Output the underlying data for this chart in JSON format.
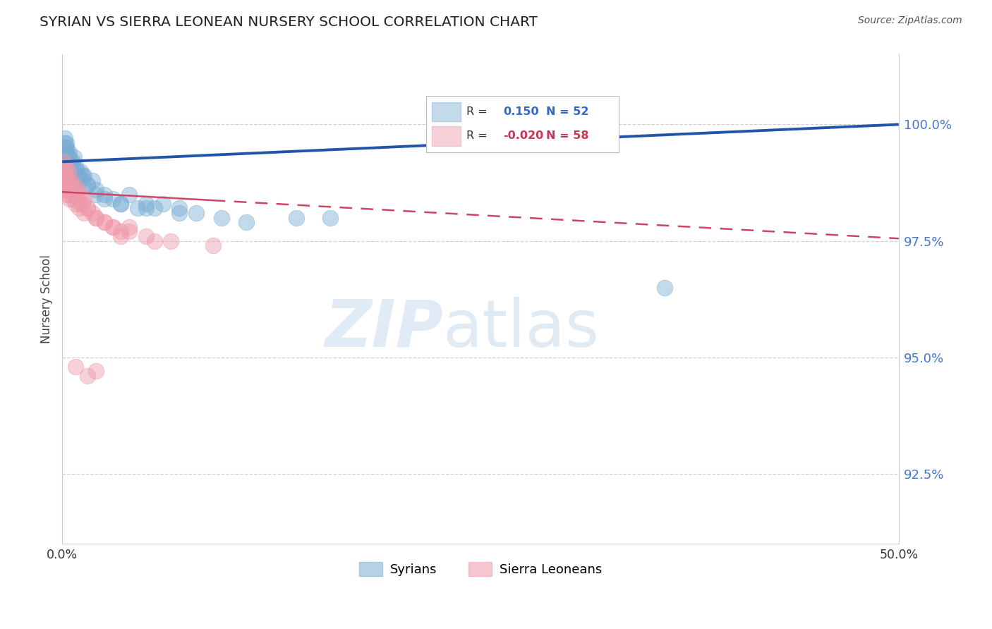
{
  "title": "SYRIAN VS SIERRA LEONEAN NURSERY SCHOOL CORRELATION CHART",
  "source": "Source: ZipAtlas.com",
  "ylabel": "Nursery School",
  "xmin": 0.0,
  "xmax": 50.0,
  "ymin": 91.0,
  "ymax": 101.5,
  "yticks": [
    92.5,
    95.0,
    97.5,
    100.0
  ],
  "ytick_labels": [
    "92.5%",
    "95.0%",
    "97.5%",
    "100.0%"
  ],
  "blue_color": "#7aadd4",
  "pink_color": "#ee99aa",
  "blue_line_color": "#2255aa",
  "pink_line_color": "#cc4466",
  "r_blue": 0.15,
  "n_blue": 52,
  "r_pink": -0.02,
  "n_pink": 58,
  "syrians_x": [
    0.05,
    0.1,
    0.15,
    0.2,
    0.25,
    0.3,
    0.35,
    0.4,
    0.5,
    0.6,
    0.7,
    0.8,
    0.9,
    1.0,
    1.1,
    1.2,
    1.3,
    1.5,
    1.8,
    2.0,
    2.5,
    3.0,
    3.5,
    4.0,
    4.5,
    5.0,
    5.5,
    6.0,
    7.0,
    8.0,
    9.5,
    11.0,
    14.0,
    16.0,
    36.0,
    0.15,
    0.2,
    0.25,
    0.3,
    0.4,
    0.5,
    0.6,
    0.7,
    0.8,
    1.0,
    1.2,
    1.5,
    2.0,
    2.5,
    3.5,
    5.0,
    7.0
  ],
  "syrians_y": [
    99.5,
    99.3,
    99.6,
    99.4,
    99.5,
    99.2,
    99.3,
    99.4,
    99.1,
    99.2,
    99.0,
    99.1,
    99.0,
    98.9,
    99.0,
    98.8,
    98.9,
    98.7,
    98.8,
    98.6,
    98.5,
    98.4,
    98.3,
    98.5,
    98.2,
    98.3,
    98.2,
    98.3,
    98.2,
    98.1,
    98.0,
    97.9,
    98.0,
    98.0,
    96.5,
    99.7,
    99.5,
    99.6,
    99.4,
    99.3,
    99.2,
    99.1,
    99.3,
    99.0,
    98.8,
    98.9,
    98.7,
    98.5,
    98.4,
    98.3,
    98.2,
    98.1
  ],
  "sierra_x": [
    0.05,
    0.1,
    0.15,
    0.2,
    0.25,
    0.3,
    0.35,
    0.4,
    0.5,
    0.6,
    0.7,
    0.8,
    0.9,
    1.0,
    1.1,
    1.2,
    1.3,
    1.5,
    1.8,
    2.0,
    2.5,
    3.0,
    3.5,
    4.0,
    5.0,
    6.5,
    9.0,
    0.1,
    0.15,
    0.2,
    0.25,
    0.3,
    0.35,
    0.4,
    0.5,
    0.6,
    0.7,
    0.8,
    0.9,
    1.0,
    1.1,
    1.3,
    1.5,
    2.0,
    2.5,
    3.0,
    4.0,
    5.5,
    0.05,
    0.1,
    0.15,
    0.2,
    0.8,
    1.5,
    2.0,
    3.5,
    0.3,
    0.4
  ],
  "sierra_y": [
    99.2,
    98.8,
    99.0,
    99.1,
    98.9,
    98.8,
    99.0,
    98.7,
    98.8,
    98.6,
    98.7,
    98.5,
    98.6,
    98.4,
    98.5,
    98.3,
    98.4,
    98.2,
    98.1,
    98.0,
    97.9,
    97.8,
    97.7,
    97.8,
    97.6,
    97.5,
    97.4,
    99.0,
    98.9,
    98.8,
    98.7,
    98.6,
    98.8,
    98.5,
    98.6,
    98.4,
    98.5,
    98.3,
    98.4,
    98.2,
    98.3,
    98.1,
    98.2,
    98.0,
    97.9,
    97.8,
    97.7,
    97.5,
    98.7,
    98.9,
    98.6,
    98.8,
    94.8,
    94.6,
    94.7,
    97.6,
    98.5,
    98.4
  ]
}
